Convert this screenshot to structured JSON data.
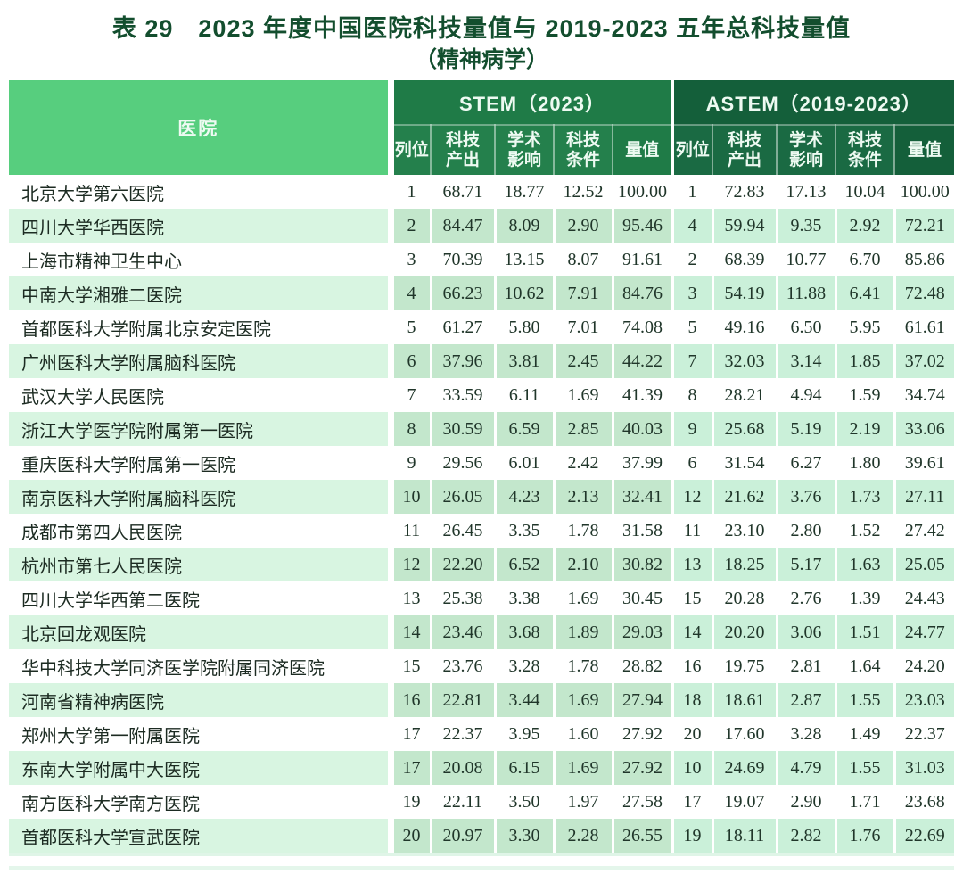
{
  "title": {
    "line1": "表 29　2023 年度中国医院科技量值与 2019-2023 五年总科技量值",
    "line2": "（精神病学）"
  },
  "colors": {
    "title_text": "#134e2e",
    "hospital_header_bg": "#57ce7e",
    "stem_header_bg": "#1f7b47",
    "astem_header_bg": "#145f3a",
    "even_row_name_bg": "#d8f5e1",
    "even_row_stem_bg": "#c3e7cc",
    "even_row_astem_bg": "#caf0d9",
    "header_text": "#eefaf2",
    "body_text": "#20362a"
  },
  "chart_data": {
    "type": "table",
    "title": "表 29 2023 年度中国医院科技量值与 2019-2023 五年总科技量值（精神病学）"
  },
  "table": {
    "hospital_header": "医院",
    "groups": [
      {
        "label": "STEM（2023）",
        "columns": [
          "列位",
          "科技产出",
          "学术影响",
          "科技条件",
          "量值"
        ]
      },
      {
        "label": "ASTEM（2019-2023）",
        "columns": [
          "列位",
          "科技产出",
          "学术影响",
          "科技条件",
          "量值"
        ]
      }
    ],
    "rows": [
      {
        "hospital": "北京大学第六医院",
        "stem": [
          "1",
          "68.71",
          "18.77",
          "12.52",
          "100.00"
        ],
        "astem": [
          "1",
          "72.83",
          "17.13",
          "10.04",
          "100.00"
        ]
      },
      {
        "hospital": "四川大学华西医院",
        "stem": [
          "2",
          "84.47",
          "8.09",
          "2.90",
          "95.46"
        ],
        "astem": [
          "4",
          "59.94",
          "9.35",
          "2.92",
          "72.21"
        ]
      },
      {
        "hospital": "上海市精神卫生中心",
        "stem": [
          "3",
          "70.39",
          "13.15",
          "8.07",
          "91.61"
        ],
        "astem": [
          "2",
          "68.39",
          "10.77",
          "6.70",
          "85.86"
        ]
      },
      {
        "hospital": "中南大学湘雅二医院",
        "stem": [
          "4",
          "66.23",
          "10.62",
          "7.91",
          "84.76"
        ],
        "astem": [
          "3",
          "54.19",
          "11.88",
          "6.41",
          "72.48"
        ]
      },
      {
        "hospital": "首都医科大学附属北京安定医院",
        "stem": [
          "5",
          "61.27",
          "5.80",
          "7.01",
          "74.08"
        ],
        "astem": [
          "5",
          "49.16",
          "6.50",
          "5.95",
          "61.61"
        ]
      },
      {
        "hospital": "广州医科大学附属脑科医院",
        "stem": [
          "6",
          "37.96",
          "3.81",
          "2.45",
          "44.22"
        ],
        "astem": [
          "7",
          "32.03",
          "3.14",
          "1.85",
          "37.02"
        ]
      },
      {
        "hospital": "武汉大学人民医院",
        "stem": [
          "7",
          "33.59",
          "6.11",
          "1.69",
          "41.39"
        ],
        "astem": [
          "8",
          "28.21",
          "4.94",
          "1.59",
          "34.74"
        ]
      },
      {
        "hospital": "浙江大学医学院附属第一医院",
        "stem": [
          "8",
          "30.59",
          "6.59",
          "2.85",
          "40.03"
        ],
        "astem": [
          "9",
          "25.68",
          "5.19",
          "2.19",
          "33.06"
        ]
      },
      {
        "hospital": "重庆医科大学附属第一医院",
        "stem": [
          "9",
          "29.56",
          "6.01",
          "2.42",
          "37.99"
        ],
        "astem": [
          "6",
          "31.54",
          "6.27",
          "1.80",
          "39.61"
        ]
      },
      {
        "hospital": "南京医科大学附属脑科医院",
        "stem": [
          "10",
          "26.05",
          "4.23",
          "2.13",
          "32.41"
        ],
        "astem": [
          "12",
          "21.62",
          "3.76",
          "1.73",
          "27.11"
        ]
      },
      {
        "hospital": "成都市第四人民医院",
        "stem": [
          "11",
          "26.45",
          "3.35",
          "1.78",
          "31.58"
        ],
        "astem": [
          "11",
          "23.10",
          "2.80",
          "1.52",
          "27.42"
        ]
      },
      {
        "hospital": "杭州市第七人民医院",
        "stem": [
          "12",
          "22.20",
          "6.52",
          "2.10",
          "30.82"
        ],
        "astem": [
          "13",
          "18.25",
          "5.17",
          "1.63",
          "25.05"
        ]
      },
      {
        "hospital": "四川大学华西第二医院",
        "stem": [
          "13",
          "25.38",
          "3.38",
          "1.69",
          "30.45"
        ],
        "astem": [
          "15",
          "20.28",
          "2.76",
          "1.39",
          "24.43"
        ]
      },
      {
        "hospital": "北京回龙观医院",
        "stem": [
          "14",
          "23.46",
          "3.68",
          "1.89",
          "29.03"
        ],
        "astem": [
          "14",
          "20.20",
          "3.06",
          "1.51",
          "24.77"
        ]
      },
      {
        "hospital": "华中科技大学同济医学院附属同济医院",
        "stem": [
          "15",
          "23.76",
          "3.28",
          "1.78",
          "28.82"
        ],
        "astem": [
          "16",
          "19.75",
          "2.81",
          "1.64",
          "24.20"
        ]
      },
      {
        "hospital": "河南省精神病医院",
        "stem": [
          "16",
          "22.81",
          "3.44",
          "1.69",
          "27.94"
        ],
        "astem": [
          "18",
          "18.61",
          "2.87",
          "1.55",
          "23.03"
        ]
      },
      {
        "hospital": "郑州大学第一附属医院",
        "stem": [
          "17",
          "22.37",
          "3.95",
          "1.60",
          "27.92"
        ],
        "astem": [
          "20",
          "17.60",
          "3.28",
          "1.49",
          "22.37"
        ]
      },
      {
        "hospital": "东南大学附属中大医院",
        "stem": [
          "17",
          "20.08",
          "6.15",
          "1.69",
          "27.92"
        ],
        "astem": [
          "10",
          "24.69",
          "4.79",
          "1.55",
          "31.03"
        ]
      },
      {
        "hospital": "南方医科大学南方医院",
        "stem": [
          "19",
          "22.11",
          "3.50",
          "1.97",
          "27.58"
        ],
        "astem": [
          "17",
          "19.07",
          "2.90",
          "1.71",
          "23.68"
        ]
      },
      {
        "hospital": "首都医科大学宣武医院",
        "stem": [
          "20",
          "20.97",
          "3.30",
          "2.28",
          "26.55"
        ],
        "astem": [
          "19",
          "18.11",
          "2.82",
          "1.76",
          "22.69"
        ]
      }
    ]
  }
}
